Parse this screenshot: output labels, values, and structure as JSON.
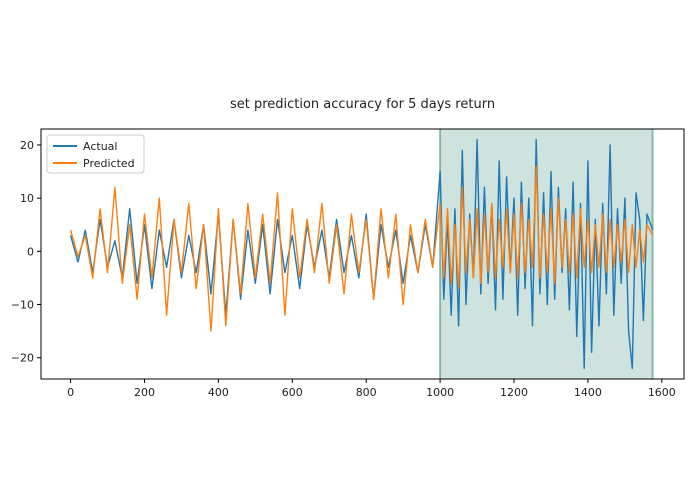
{
  "chart_data": {
    "type": "line",
    "title": "set prediction accuracy for 5 days return",
    "xlabel": "",
    "ylabel": "",
    "xlim": [
      -80,
      1660
    ],
    "ylim": [
      -24,
      23
    ],
    "x_ticks": [
      0,
      200,
      400,
      600,
      800,
      1000,
      1200,
      1400,
      1600
    ],
    "y_ticks": [
      -20,
      -10,
      0,
      10,
      20
    ],
    "x_tick_labels": [
      "0",
      "200",
      "400",
      "600",
      "800",
      "1000",
      "1200",
      "1400",
      "1600"
    ],
    "y_tick_labels": [
      "−20",
      "−10",
      "0",
      "10",
      "20"
    ],
    "shaded_region": {
      "x_start": 1000,
      "x_end": 1575,
      "color": "#3a8c7a"
    },
    "legend": {
      "position": "top-left"
    },
    "series": [
      {
        "name": "Actual",
        "color": "#1f77b4",
        "x": [
          0,
          20,
          40,
          60,
          80,
          100,
          120,
          140,
          160,
          180,
          200,
          220,
          240,
          260,
          280,
          300,
          320,
          340,
          360,
          380,
          400,
          420,
          440,
          460,
          480,
          500,
          520,
          540,
          560,
          580,
          600,
          620,
          640,
          660,
          680,
          700,
          720,
          740,
          760,
          780,
          800,
          820,
          840,
          860,
          880,
          900,
          920,
          940,
          960,
          980,
          1000,
          1010,
          1020,
          1030,
          1040,
          1050,
          1060,
          1070,
          1080,
          1090,
          1100,
          1110,
          1120,
          1130,
          1140,
          1150,
          1160,
          1170,
          1180,
          1190,
          1200,
          1210,
          1220,
          1230,
          1240,
          1250,
          1260,
          1270,
          1280,
          1290,
          1300,
          1310,
          1320,
          1330,
          1340,
          1350,
          1360,
          1370,
          1380,
          1390,
          1400,
          1410,
          1420,
          1430,
          1440,
          1450,
          1460,
          1470,
          1480,
          1490,
          1500,
          1510,
          1520,
          1530,
          1540,
          1550,
          1560,
          1575
        ],
        "y": [
          3,
          -2,
          4,
          -4,
          6,
          -3,
          2,
          -5,
          8,
          -6,
          5,
          -7,
          4,
          -3,
          6,
          -5,
          3,
          -4,
          5,
          -8,
          7,
          -12,
          6,
          -9,
          4,
          -6,
          5,
          -8,
          6,
          -4,
          3,
          -7,
          5,
          -3,
          4,
          -5,
          6,
          -4,
          3,
          -5,
          7,
          -9,
          5,
          -3,
          4,
          -6,
          3,
          -4,
          5,
          -3,
          15,
          -9,
          6,
          -12,
          8,
          -14,
          19,
          -10,
          7,
          -5,
          21,
          -8,
          12,
          -6,
          9,
          -11,
          17,
          -9,
          14,
          -4,
          10,
          -12,
          13,
          -7,
          10,
          -14,
          21,
          -8,
          11,
          -10,
          15,
          -9,
          12,
          -4,
          8,
          -11,
          13,
          -16,
          9,
          -22,
          17,
          -19,
          6,
          -14,
          9,
          -8,
          20,
          -12,
          8,
          -6,
          10,
          -15,
          -22,
          11,
          6,
          -13,
          7,
          4
        ]
      },
      {
        "name": "Predicted",
        "color": "#ff7f0e",
        "x": [
          0,
          20,
          40,
          60,
          80,
          100,
          120,
          140,
          160,
          180,
          200,
          220,
          240,
          260,
          280,
          300,
          320,
          340,
          360,
          380,
          400,
          420,
          440,
          460,
          480,
          500,
          520,
          540,
          560,
          580,
          600,
          620,
          640,
          660,
          680,
          700,
          720,
          740,
          760,
          780,
          800,
          820,
          840,
          860,
          880,
          900,
          920,
          940,
          960,
          980,
          1000,
          1010,
          1020,
          1030,
          1040,
          1050,
          1060,
          1070,
          1080,
          1090,
          1100,
          1110,
          1120,
          1130,
          1140,
          1150,
          1160,
          1170,
          1180,
          1190,
          1200,
          1210,
          1220,
          1230,
          1240,
          1250,
          1260,
          1270,
          1280,
          1290,
          1300,
          1310,
          1320,
          1330,
          1340,
          1350,
          1360,
          1370,
          1380,
          1390,
          1400,
          1410,
          1420,
          1430,
          1440,
          1450,
          1460,
          1470,
          1480,
          1490,
          1500,
          1510,
          1520,
          1530,
          1540,
          1550,
          1560,
          1575
        ],
        "y": [
          4,
          -1,
          3,
          -5,
          8,
          -4,
          12,
          -6,
          5,
          -9,
          7,
          -5,
          10,
          -12,
          6,
          -4,
          9,
          -7,
          5,
          -15,
          8,
          -14,
          6,
          -8,
          9,
          -5,
          7,
          -6,
          11,
          -12,
          8,
          -5,
          6,
          -4,
          9,
          -6,
          5,
          -8,
          7,
          -4,
          6,
          -9,
          8,
          -5,
          7,
          -10,
          5,
          -4,
          6,
          -3,
          9,
          -5,
          8,
          -6,
          5,
          -7,
          12,
          -4,
          6,
          -5,
          8,
          -6,
          7,
          -4,
          9,
          -5,
          6,
          -3,
          8,
          -4,
          7,
          -5,
          9,
          -4,
          6,
          -3,
          16,
          -5,
          7,
          -4,
          8,
          -6,
          10,
          -3,
          6,
          -4,
          7,
          -5,
          8,
          -3,
          6,
          -4,
          5,
          -3,
          7,
          -4,
          6,
          -3,
          5,
          -2,
          6,
          -4,
          5,
          -3,
          4,
          -2,
          5,
          3
        ]
      }
    ]
  }
}
